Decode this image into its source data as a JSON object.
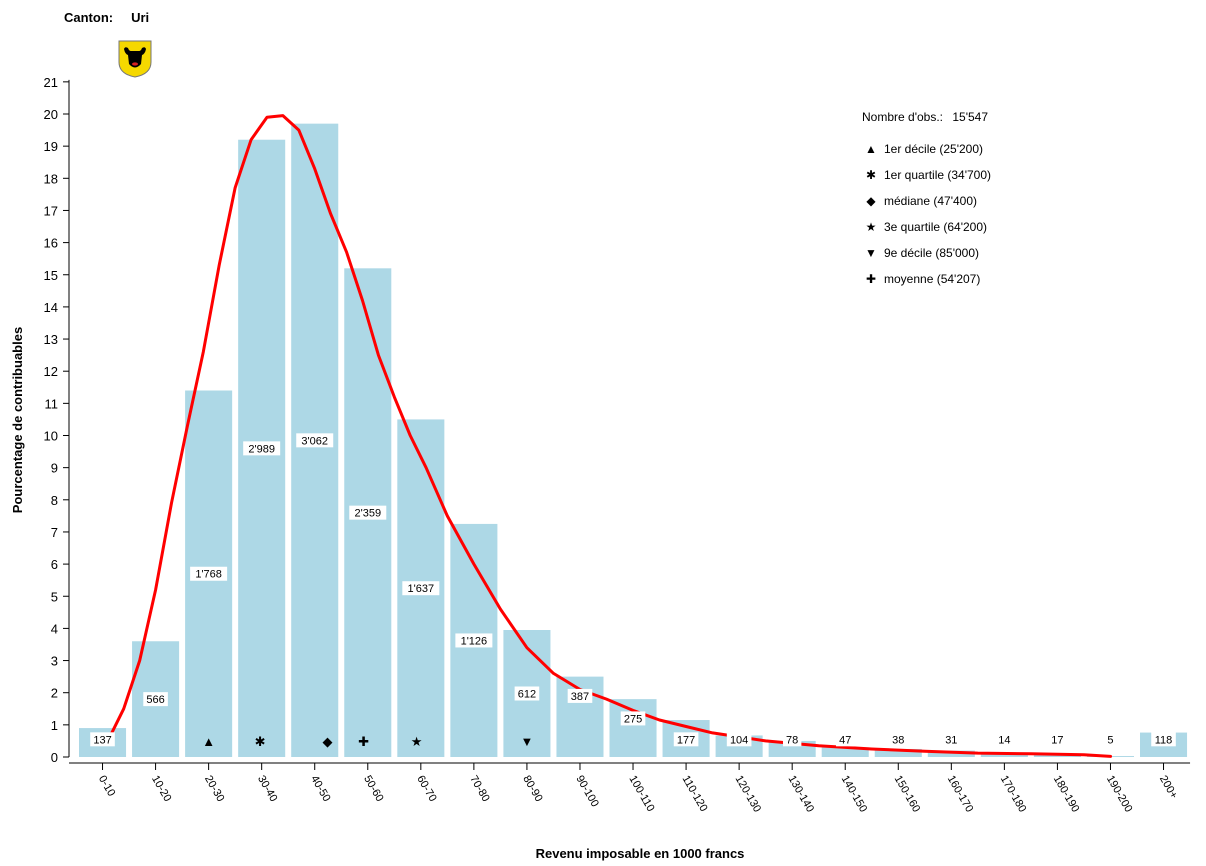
{
  "header": {
    "canton_label": "Canton:",
    "canton_value": "Uri"
  },
  "crest": {
    "name": "uri-bull-crest",
    "colors": {
      "field": "#f5d800",
      "bull": "#000000",
      "nose": "#d62020"
    }
  },
  "legend": {
    "obs_label": "Nombre d'obs.:",
    "obs_value": "15'547",
    "items": [
      {
        "symbol": "triangle-up",
        "glyph": "▲",
        "label": "1er décile (25'200)"
      },
      {
        "symbol": "asterisk",
        "glyph": "✱",
        "label": "1er quartile (34'700)"
      },
      {
        "symbol": "diamond",
        "glyph": "◆",
        "label": "médiane (47'400)"
      },
      {
        "symbol": "star",
        "glyph": "★",
        "label": "3e quartile (64'200)"
      },
      {
        "symbol": "triangle-down",
        "glyph": "▼",
        "label": "9e décile (85'000)"
      },
      {
        "symbol": "plus",
        "glyph": "✚",
        "label": "moyenne (54'207)"
      }
    ]
  },
  "chart_data": {
    "type": "bar",
    "title": "",
    "xlabel": "Revenu imposable en 1000 francs",
    "ylabel": "Pourcentage de contribuables",
    "ylim": [
      0,
      21
    ],
    "yticks": [
      0,
      1,
      2,
      3,
      4,
      5,
      6,
      7,
      8,
      9,
      10,
      11,
      12,
      13,
      14,
      15,
      16,
      17,
      18,
      19,
      20,
      21
    ],
    "categories": [
      "0-10",
      "10-20",
      "20-30",
      "30-40",
      "40-50",
      "50-60",
      "60-70",
      "70-80",
      "80-90",
      "90-100",
      "100-110",
      "110-120",
      "120-130",
      "130-140",
      "140-150",
      "150-160",
      "160-170",
      "170-180",
      "180-190",
      "190-200",
      "200+"
    ],
    "values": [
      0.9,
      3.6,
      11.4,
      19.2,
      19.7,
      15.2,
      10.5,
      7.25,
      3.95,
      2.5,
      1.8,
      1.15,
      0.67,
      0.5,
      0.3,
      0.25,
      0.2,
      0.09,
      0.11,
      0.03,
      0.76
    ],
    "counts": [
      "137",
      "566",
      "1'768",
      "2'989",
      "3'062",
      "2'359",
      "1'637",
      "1'126",
      "612",
      "387",
      "275",
      "177",
      "104",
      "78",
      "47",
      "38",
      "31",
      "14",
      "17",
      "5",
      "118"
    ],
    "curve": {
      "x": [
        0.6,
        0.9,
        1.2,
        1.5,
        1.8,
        2.1,
        2.4,
        2.7,
        3.0,
        3.3,
        3.6,
        3.9,
        4.2,
        4.5,
        4.8,
        5.1,
        5.4,
        5.7,
        6.0,
        6.3,
        6.6,
        7.0,
        7.5,
        8.0,
        8.5,
        9.0,
        9.5,
        10.0,
        10.5,
        11.0,
        11.5,
        12.0,
        13.0,
        14.0,
        15.0,
        16.0,
        17.0,
        18.0,
        19.0,
        19.5
      ],
      "y": [
        0.5,
        1.5,
        3.0,
        5.2,
        7.9,
        10.3,
        12.6,
        15.3,
        17.7,
        19.2,
        19.9,
        19.95,
        19.5,
        18.3,
        16.9,
        15.7,
        14.2,
        12.5,
        11.2,
        10.0,
        9.0,
        7.5,
        6.0,
        4.6,
        3.4,
        2.6,
        2.1,
        1.8,
        1.45,
        1.15,
        0.95,
        0.75,
        0.5,
        0.35,
        0.25,
        0.18,
        0.12,
        0.1,
        0.07,
        0.02
      ],
      "color": "#ff0000"
    },
    "markers": [
      {
        "symbol": "triangle-up",
        "x": 2.5
      },
      {
        "symbol": "asterisk",
        "x": 3.47
      },
      {
        "symbol": "diamond",
        "x": 4.74
      },
      {
        "symbol": "plus",
        "x": 5.42
      },
      {
        "symbol": "star",
        "x": 6.42
      },
      {
        "symbol": "triangle-down",
        "x": 8.5
      }
    ],
    "bar_color": "#add8e6",
    "grid": false,
    "legend_position": "top-right"
  }
}
